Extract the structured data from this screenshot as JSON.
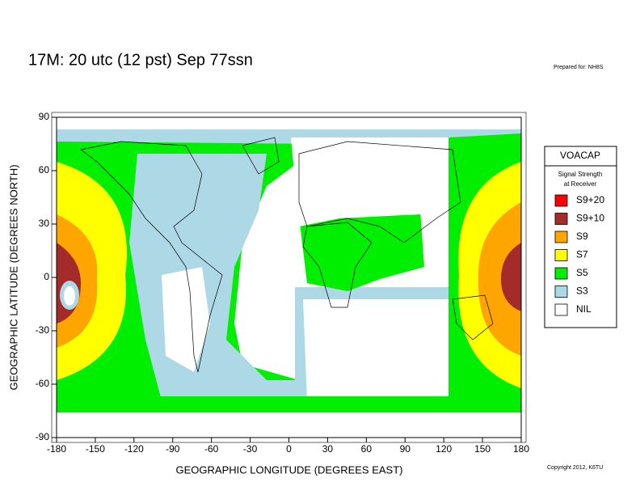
{
  "header": {
    "title": "17M:  20 utc (12 pst) Sep 77ssn",
    "prepared": "Prepared for: NH8S",
    "copyright": "Copyright 2012, K6TU"
  },
  "chart_data": {
    "type": "map",
    "xlabel": "GEOGRAPHIC LONGITUDE (DEGREES EAST)",
    "ylabel": "GEOGRAPHIC LATITUDE (DEGREES NORTH)",
    "xlim": [
      -180,
      180
    ],
    "xticks": [
      -180,
      -150,
      -120,
      -90,
      -60,
      -30,
      0,
      30,
      60,
      90,
      120,
      150,
      180
    ],
    "ylim": [
      -90,
      90
    ],
    "yticks": [
      -90,
      -60,
      -30,
      0,
      30,
      60,
      90
    ],
    "legend": {
      "title": "VOACAP",
      "subtitle": [
        "Signal Strength",
        "at Receiver"
      ],
      "items": [
        {
          "name": "S9+20",
          "color": "#ff0000"
        },
        {
          "name": "S9+10",
          "color": "#a52a2a"
        },
        {
          "name": "S9",
          "color": "#ffa500"
        },
        {
          "name": "S7",
          "color": "#ffff00"
        },
        {
          "name": "S5",
          "color": "#00ee00"
        },
        {
          "name": "S3",
          "color": "#add8e6"
        },
        {
          "name": "NIL",
          "color": "#ffffff"
        }
      ]
    }
  }
}
